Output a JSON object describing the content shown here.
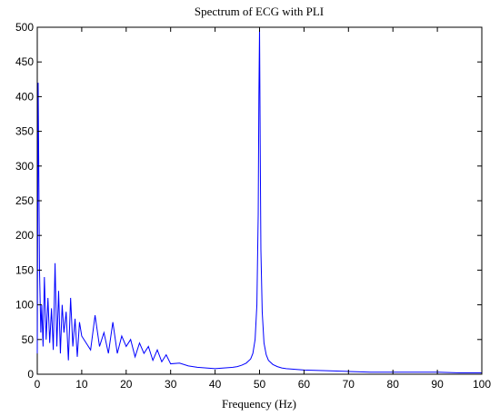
{
  "chart_data": {
    "type": "line",
    "title": "Spectrum of ECG with PLI",
    "xlabel": "Frequency (Hz)",
    "ylabel": "",
    "xlim": [
      0,
      100
    ],
    "ylim": [
      0,
      500
    ],
    "xticks": [
      0,
      10,
      20,
      30,
      40,
      50,
      60,
      70,
      80,
      90,
      100
    ],
    "yticks": [
      0,
      50,
      100,
      150,
      200,
      250,
      300,
      350,
      400,
      450,
      500
    ],
    "grid": false,
    "series": [
      {
        "color": "#0000ff",
        "x": [
          0,
          0.2,
          0.5,
          0.8,
          1.0,
          1.3,
          1.6,
          2.0,
          2.4,
          2.8,
          3.2,
          3.6,
          4.0,
          4.4,
          4.8,
          5.2,
          5.6,
          6.0,
          6.5,
          7.0,
          7.5,
          8.0,
          8.5,
          9.0,
          9.5,
          10.0,
          11,
          12,
          13,
          14,
          15,
          16,
          17,
          18,
          19,
          20,
          21,
          22,
          23,
          24,
          25,
          26,
          27,
          28,
          29,
          30,
          32,
          34,
          36,
          38,
          40,
          42,
          44,
          45,
          46,
          47,
          48,
          48.5,
          49,
          49.4,
          49.7,
          49.85,
          50.0,
          50.15,
          50.3,
          50.6,
          51,
          51.5,
          52,
          53,
          54,
          55,
          56,
          58,
          60,
          65,
          70,
          75,
          80,
          85,
          90,
          95,
          100
        ],
        "y": [
          30,
          420,
          150,
          60,
          100,
          40,
          140,
          50,
          110,
          45,
          95,
          35,
          160,
          40,
          120,
          30,
          100,
          60,
          90,
          20,
          110,
          40,
          80,
          25,
          75,
          55,
          45,
          35,
          85,
          40,
          60,
          30,
          75,
          30,
          55,
          40,
          50,
          25,
          45,
          30,
          40,
          20,
          35,
          18,
          28,
          15,
          16,
          12,
          10,
          9,
          8,
          9,
          10,
          11,
          13,
          16,
          22,
          30,
          50,
          100,
          230,
          400,
          500,
          330,
          180,
          90,
          45,
          28,
          20,
          14,
          11,
          9,
          8,
          7,
          6,
          5,
          4,
          3,
          3,
          3,
          3,
          2,
          2
        ]
      }
    ]
  }
}
